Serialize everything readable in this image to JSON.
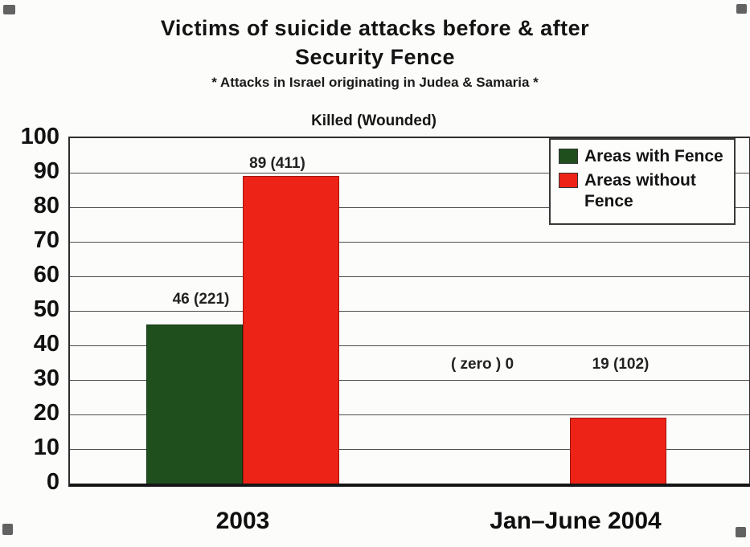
{
  "chart_data": {
    "type": "bar",
    "title": "Victims of suicide attacks before & after Security Fence",
    "title_lines": [
      "Victims of suicide attacks before & after",
      "Security Fence"
    ],
    "subtitle": "* Attacks in Israel originating in Judea & Samaria *",
    "axis_note": "Killed (Wounded)",
    "categories": [
      "2003",
      "Jan–June 2004"
    ],
    "series": [
      {
        "name": "Areas with Fence",
        "color": "#1f4f1d",
        "values": [
          46,
          0
        ],
        "wounded": [
          221,
          0
        ],
        "bar_labels": [
          "46 (221)",
          "( zero ) 0"
        ]
      },
      {
        "name": "Areas without Fence",
        "color": "#ee2317",
        "values": [
          89,
          19
        ],
        "wounded": [
          411,
          102
        ],
        "bar_labels": [
          "89 (411)",
          "19 (102)"
        ]
      }
    ],
    "ylim": [
      0,
      100
    ],
    "ytick_step": 10,
    "grid": true,
    "legend_position": "top-right",
    "xlabel": "",
    "ylabel": ""
  }
}
